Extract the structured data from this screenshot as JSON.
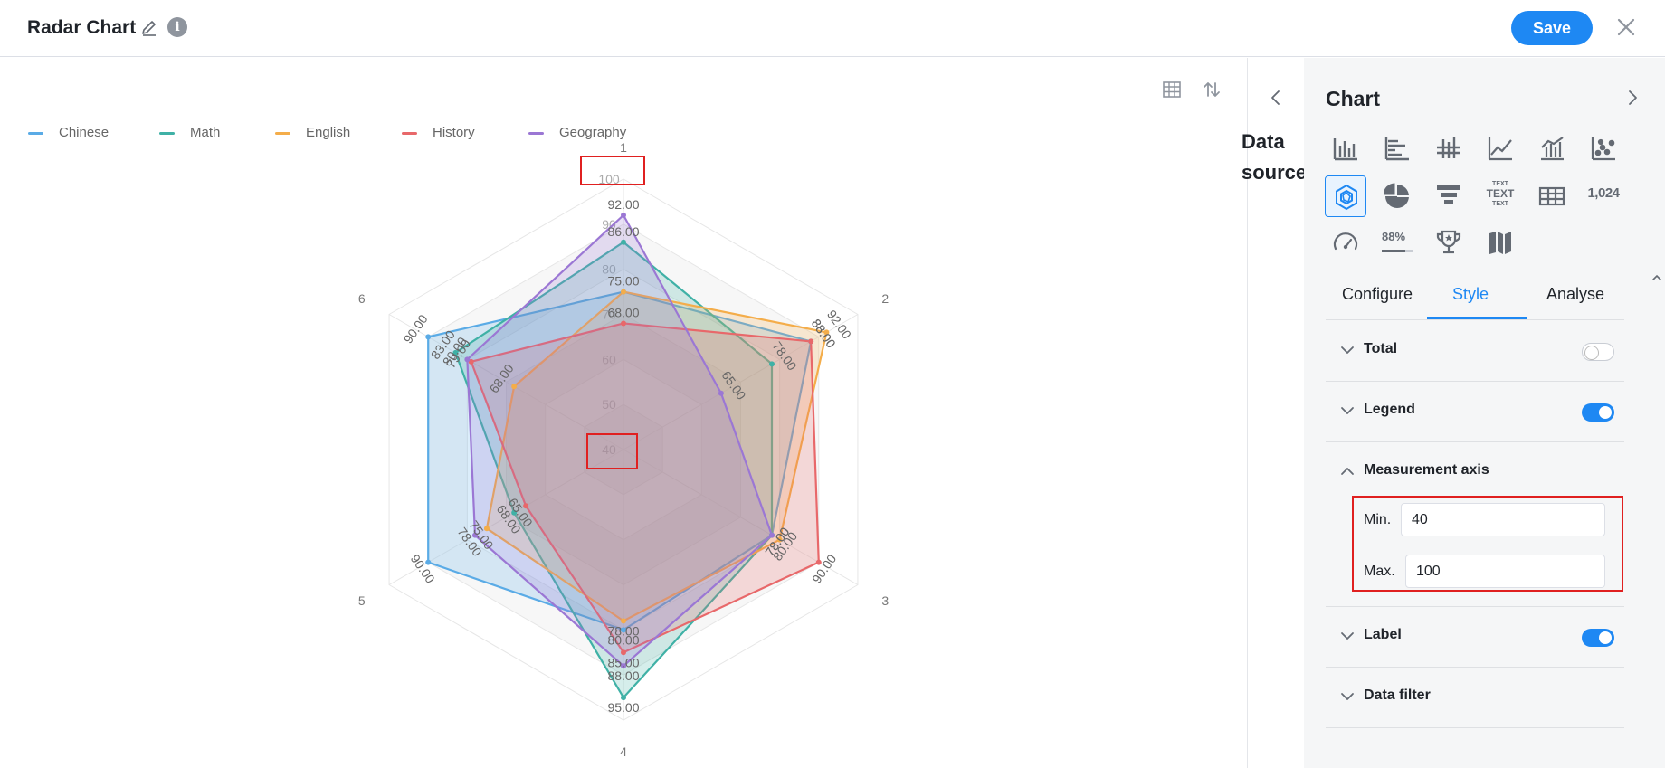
{
  "header": {
    "title": "Radar Chart",
    "save_label": "Save"
  },
  "legend": [
    {
      "name": "Chinese",
      "color": "#5aabe6"
    },
    {
      "name": "Math",
      "color": "#3fb1a6"
    },
    {
      "name": "English",
      "color": "#f4ad4a"
    },
    {
      "name": "History",
      "color": "#e8686a"
    },
    {
      "name": "Geography",
      "color": "#9b77d4"
    }
  ],
  "data_source": {
    "label": "Data source"
  },
  "panel": {
    "title": "Chart",
    "chart_types": [
      "bar-chart-icon",
      "horizontal-bar-icon",
      "stacked-bar-icon",
      "line-chart-icon",
      "combo-chart-icon",
      "scatter-chart-icon",
      "radar-chart-icon",
      "pie-chart-icon",
      "funnel-chart-icon",
      "word-cloud-icon",
      "table-icon",
      "number-icon",
      "gauge-icon",
      "progress-icon",
      "ranking-icon",
      "map-icon"
    ],
    "word_cloud_text": [
      "TEXT",
      "TEXT",
      "TEXT"
    ],
    "number_text": "1,024",
    "progress_text": "88%",
    "tabs": [
      "Configure",
      "Style",
      "Analyse"
    ],
    "active_tab": "Style",
    "sections": {
      "total": {
        "label": "Total",
        "enabled": false
      },
      "legend": {
        "label": "Legend",
        "enabled": true
      },
      "measurement_axis": {
        "label": "Measurement axis",
        "min_label": "Min.",
        "min_value": "40",
        "max_label": "Max.",
        "max_value": "100"
      },
      "label": {
        "label": "Label",
        "enabled": true
      },
      "data_filter": {
        "label": "Data filter"
      }
    }
  },
  "chart_data": {
    "type": "radar",
    "categories": [
      "1",
      "2",
      "3",
      "4",
      "5",
      "6"
    ],
    "axis_min": 40,
    "axis_max": 100,
    "axis_ticks": [
      "40",
      "50",
      "60",
      "70",
      "80",
      "90",
      "100"
    ],
    "series": [
      {
        "name": "Chinese",
        "color": "#5aabe6",
        "values": [
          75,
          88,
          78,
          80,
          90,
          90
        ]
      },
      {
        "name": "Math",
        "color": "#3fb1a6",
        "values": [
          86,
          78,
          78,
          95,
          68,
          83
        ]
      },
      {
        "name": "English",
        "color": "#f4ad4a",
        "values": [
          75,
          92,
          80,
          78,
          75,
          68
        ]
      },
      {
        "name": "History",
        "color": "#e8686a",
        "values": [
          68,
          88,
          90,
          85,
          65,
          79
        ]
      },
      {
        "name": "Geography",
        "color": "#9b77d4",
        "values": [
          92,
          65,
          78,
          88,
          78,
          80
        ]
      }
    ],
    "data_labels": [
      {
        "series": "Geography",
        "cat": 0,
        "text": "92.00"
      },
      {
        "series": "Math",
        "cat": 0,
        "text": "86.00"
      },
      {
        "series": "Chinese",
        "cat": 0,
        "text": "75.00"
      },
      {
        "series": "History",
        "cat": 0,
        "text": "68.00"
      },
      {
        "series": "English",
        "cat": 1,
        "text": "92.00"
      },
      {
        "series": "Chinese",
        "cat": 1,
        "text": "88.00"
      },
      {
        "series": "History",
        "cat": 1,
        "text": "88.00"
      },
      {
        "series": "Math",
        "cat": 1,
        "text": "78.00"
      },
      {
        "series": "Geography",
        "cat": 1,
        "text": "65.00"
      },
      {
        "series": "History",
        "cat": 2,
        "text": "90.00"
      },
      {
        "series": "English",
        "cat": 2,
        "text": "80.00"
      },
      {
        "series": "Chinese",
        "cat": 2,
        "text": "78.00"
      },
      {
        "series": "Math",
        "cat": 2,
        "text": "78.00"
      },
      {
        "series": "Math",
        "cat": 3,
        "text": "95.00"
      },
      {
        "series": "Geography",
        "cat": 3,
        "text": "88.00"
      },
      {
        "series": "History",
        "cat": 3,
        "text": "85.00"
      },
      {
        "series": "Chinese",
        "cat": 3,
        "text": "80.00"
      },
      {
        "series": "English",
        "cat": 3,
        "text": "78.00"
      },
      {
        "series": "Chinese",
        "cat": 4,
        "text": "90.00"
      },
      {
        "series": "Geography",
        "cat": 4,
        "text": "78.00"
      },
      {
        "series": "English",
        "cat": 4,
        "text": "75.00"
      },
      {
        "series": "Math",
        "cat": 4,
        "text": "68.00"
      },
      {
        "series": "History",
        "cat": 4,
        "text": "65.00"
      },
      {
        "series": "Chinese",
        "cat": 5,
        "text": "90.00"
      },
      {
        "series": "Math",
        "cat": 5,
        "text": "83.00"
      },
      {
        "series": "Geography",
        "cat": 5,
        "text": "80.00"
      },
      {
        "series": "History",
        "cat": 5,
        "text": "79.00"
      },
      {
        "series": "English",
        "cat": 5,
        "text": "68.00"
      }
    ]
  }
}
